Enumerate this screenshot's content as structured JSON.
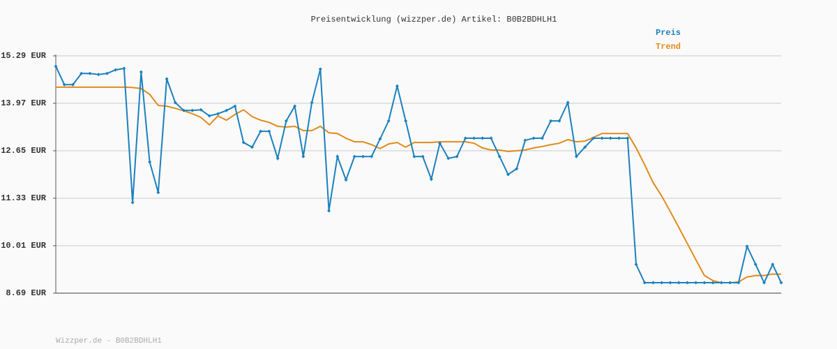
{
  "chart_data": {
    "type": "line",
    "title": "Preisentwicklung (wizzper.de) Artikel: B0B2BDHLH1",
    "footer": "Wizzper.de - B0B2BDHLH1",
    "ylim": [
      8.69,
      15.29
    ],
    "yticks": [
      {
        "value": 8.69,
        "label": "8.69 EUR"
      },
      {
        "value": 10.01,
        "label": "10.01 EUR"
      },
      {
        "value": 11.33,
        "label": "11.33 EUR"
      },
      {
        "value": 12.65,
        "label": "12.65 EUR"
      },
      {
        "value": 13.97,
        "label": "13.97 EUR"
      },
      {
        "value": 15.29,
        "label": "15.29 EUR"
      }
    ],
    "grid": true,
    "legend": "top-right",
    "series": [
      {
        "name": "Preis",
        "color": "#1b80be",
        "markers": true,
        "values": [
          15.0,
          14.49,
          14.49,
          14.8,
          14.8,
          14.77,
          14.8,
          14.9,
          14.94,
          11.21,
          14.84,
          12.34,
          11.49,
          14.65,
          13.99,
          13.77,
          13.77,
          13.79,
          13.62,
          13.68,
          13.77,
          13.89,
          12.88,
          12.75,
          13.19,
          13.19,
          12.44,
          13.48,
          13.89,
          12.49,
          13.99,
          14.92,
          10.98,
          12.49,
          11.84,
          12.49,
          12.49,
          12.49,
          12.98,
          13.48,
          14.45,
          13.48,
          12.49,
          12.49,
          11.86,
          12.86,
          12.44,
          12.49,
          13.0,
          13.0,
          13.0,
          13.0,
          12.49,
          11.99,
          12.15,
          12.94,
          13.0,
          13.0,
          13.48,
          13.48,
          13.99,
          12.49,
          12.75,
          13.0,
          13.0,
          13.0,
          13.0,
          13.0,
          9.49,
          8.98,
          8.98,
          8.98,
          8.98,
          8.98,
          8.98,
          8.98,
          8.98,
          8.98,
          8.98,
          8.98,
          8.98,
          9.99,
          9.49,
          8.98,
          9.49,
          8.98
        ]
      },
      {
        "name": "Trend",
        "color": "#e08b1c",
        "markers": false,
        "values": [
          14.42,
          14.42,
          14.42,
          14.42,
          14.42,
          14.42,
          14.42,
          14.42,
          14.42,
          14.41,
          14.38,
          14.22,
          13.91,
          13.89,
          13.83,
          13.76,
          13.68,
          13.58,
          13.37,
          13.62,
          13.5,
          13.66,
          13.79,
          13.6,
          13.5,
          13.44,
          13.33,
          13.31,
          13.33,
          13.21,
          13.21,
          13.33,
          13.15,
          13.13,
          13.0,
          12.9,
          12.9,
          12.82,
          12.71,
          12.84,
          12.88,
          12.75,
          12.88,
          12.88,
          12.88,
          12.9,
          12.9,
          12.9,
          12.9,
          12.86,
          12.73,
          12.67,
          12.67,
          12.63,
          12.65,
          12.67,
          12.73,
          12.77,
          12.82,
          12.86,
          12.96,
          12.9,
          12.92,
          13.02,
          13.13,
          13.13,
          13.13,
          13.13,
          12.73,
          12.26,
          11.76,
          11.39,
          10.96,
          10.52,
          10.07,
          9.62,
          9.18,
          9.04,
          8.98,
          8.98,
          9.0,
          9.14,
          9.18,
          9.18,
          9.22,
          9.22
        ]
      }
    ]
  }
}
